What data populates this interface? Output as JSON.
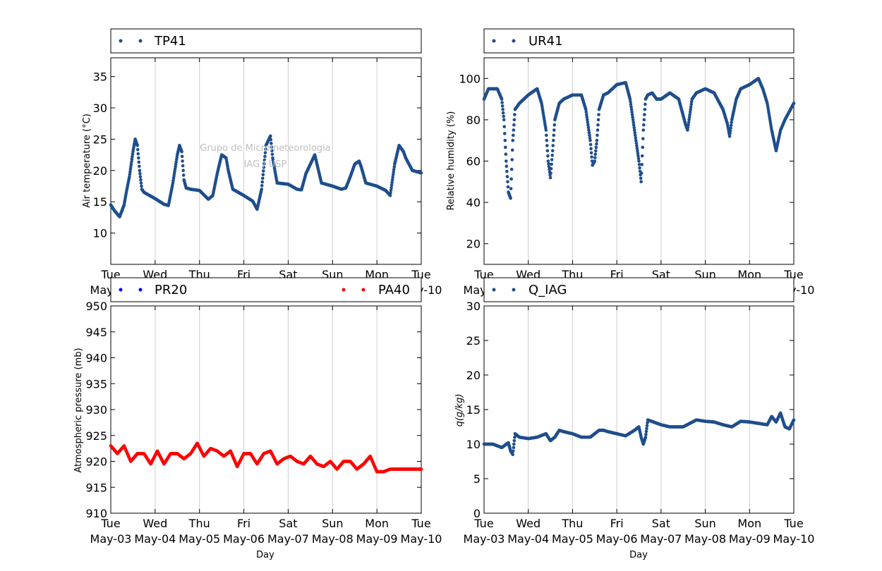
{
  "figure": {
    "watermark": [
      "Grupo de Micrometeorologia",
      "IAG / USP"
    ],
    "x_ticks": [
      {
        "day": "Tue",
        "date": "May-03"
      },
      {
        "day": "Wed",
        "date": "May-04"
      },
      {
        "day": "Thu",
        "date": "May-05"
      },
      {
        "day": "Fri",
        "date": "May-06"
      },
      {
        "day": "Sat",
        "date": "May-07"
      },
      {
        "day": "Sun",
        "date": "May-08"
      },
      {
        "day": "Mon",
        "date": "May-09"
      },
      {
        "day": "Tue",
        "date": "May-10"
      }
    ]
  },
  "chart_data": [
    {
      "type": "scatter",
      "xlabel": "Day",
      "ylabel": "Air temperature (°C)",
      "ylim": [
        5,
        38
      ],
      "yticks": [
        10,
        15,
        20,
        25,
        30,
        35
      ],
      "xlim": [
        0,
        7
      ],
      "grid": "vertical",
      "legend_position": "top, above plot",
      "color": "#1f4e8c",
      "series": [
        {
          "name": "TP41",
          "x": [
            0,
            0.08,
            0.2,
            0.3,
            0.35,
            0.42,
            0.5,
            0.55,
            0.6,
            0.65,
            0.7,
            0.75,
            1,
            1.2,
            1.3,
            1.4,
            1.5,
            1.55,
            1.6,
            1.65,
            1.7,
            1.8,
            2,
            2.2,
            2.3,
            2.4,
            2.5,
            2.6,
            2.65,
            2.75,
            3,
            3.2,
            3.3,
            3.4,
            3.5,
            3.6,
            3.65,
            3.75,
            4,
            4.2,
            4.3,
            4.4,
            4.5,
            4.6,
            4.65,
            4.75,
            5,
            5.2,
            5.3,
            5.4,
            5.5,
            5.6,
            5.65,
            5.75,
            6,
            6.2,
            6.3,
            6.4,
            6.5,
            6.6,
            6.65,
            6.8,
            7
          ],
          "y": [
            14.5,
            13.6,
            12.6,
            14.5,
            16.5,
            19,
            23,
            25,
            24,
            20,
            17,
            16.5,
            15.5,
            14.6,
            14.4,
            18,
            22.5,
            24,
            23,
            18.5,
            17.2,
            17,
            16.8,
            15.4,
            16,
            19.5,
            22.5,
            22,
            20,
            17,
            16,
            15.1,
            13.8,
            17,
            24,
            25.5,
            22,
            18,
            17.8,
            17,
            16.9,
            19.5,
            21,
            22.5,
            21,
            18,
            17.5,
            17,
            17.2,
            19,
            21,
            21.5,
            20.5,
            18,
            17.5,
            16.8,
            16,
            21,
            24,
            23,
            22,
            20,
            19.6
          ]
        }
      ]
    },
    {
      "type": "scatter",
      "xlabel": "Day",
      "ylabel": "Relative humidity (%)",
      "ylim": [
        10,
        110
      ],
      "yticks": [
        20,
        40,
        60,
        80,
        100
      ],
      "xlim": [
        0,
        7
      ],
      "grid": "vertical",
      "legend_position": "top, above plot",
      "color": "#1f4e8c",
      "series": [
        {
          "name": "UR41",
          "x": [
            0,
            0.1,
            0.3,
            0.4,
            0.45,
            0.5,
            0.55,
            0.6,
            0.65,
            0.7,
            0.8,
            1,
            1.2,
            1.3,
            1.4,
            1.45,
            1.5,
            1.55,
            1.6,
            1.7,
            1.8,
            2,
            2.2,
            2.3,
            2.4,
            2.45,
            2.5,
            2.55,
            2.6,
            2.7,
            2.8,
            3,
            3.2,
            3.3,
            3.4,
            3.5,
            3.55,
            3.6,
            3.65,
            3.7,
            3.8,
            3.9,
            4,
            4.2,
            4.4,
            4.5,
            4.55,
            4.6,
            4.7,
            4.8,
            5,
            5.2,
            5.4,
            5.5,
            5.55,
            5.6,
            5.7,
            5.8,
            6,
            6.2,
            6.3,
            6.4,
            6.5,
            6.6,
            6.7,
            6.8,
            7
          ],
          "y": [
            90,
            95,
            95,
            90,
            80,
            60,
            45,
            42,
            70,
            85,
            88,
            92,
            95,
            88,
            75,
            60,
            52,
            65,
            80,
            88,
            90,
            92,
            92,
            85,
            70,
            58,
            60,
            70,
            85,
            92,
            93,
            97,
            98,
            90,
            75,
            60,
            50,
            75,
            90,
            92,
            93,
            90,
            90,
            93,
            90,
            82,
            78,
            75,
            90,
            93,
            95,
            93,
            85,
            78,
            72,
            80,
            90,
            95,
            97,
            100,
            95,
            88,
            75,
            65,
            75,
            80,
            88
          ]
        }
      ]
    },
    {
      "type": "scatter",
      "xlabel": "Day",
      "ylabel": "Atmospheric pressure (mb)",
      "ylim": [
        910,
        950
      ],
      "yticks": [
        910,
        915,
        920,
        925,
        930,
        935,
        940,
        945,
        950
      ],
      "xlim": [
        0,
        7
      ],
      "grid": "vertical",
      "legend_position": "top, above plot",
      "series": [
        {
          "name": "PR20",
          "color": "#0000ff",
          "x": [],
          "y": []
        },
        {
          "name": "PA40",
          "color": "#ff0000",
          "x": [
            0,
            0.15,
            0.3,
            0.45,
            0.6,
            0.75,
            0.9,
            1.05,
            1.2,
            1.35,
            1.5,
            1.65,
            1.8,
            1.95,
            2.1,
            2.25,
            2.4,
            2.55,
            2.7,
            2.85,
            3,
            3.15,
            3.3,
            3.45,
            3.6,
            3.75,
            3.9,
            4.05,
            4.2,
            4.35,
            4.5,
            4.65,
            4.8,
            4.95,
            5.1,
            5.25,
            5.4,
            5.55,
            5.7,
            5.85,
            6,
            6.15,
            6.3,
            6.45,
            6.6,
            6.75,
            6.9,
            7
          ],
          "y": [
            923,
            921.5,
            923,
            920,
            921.5,
            921.5,
            919.5,
            922,
            919.5,
            921.5,
            921.5,
            920.5,
            921.5,
            923.5,
            921,
            922.5,
            922,
            921,
            922,
            919,
            921.5,
            921.5,
            919.5,
            921.5,
            922,
            919.5,
            920.5,
            921,
            920,
            919.5,
            921,
            919.5,
            919,
            920,
            918.5,
            920,
            920,
            918.5,
            919.5,
            921,
            918,
            918,
            918.5,
            918.5,
            918.5,
            918.5,
            918.5,
            918.5
          ]
        }
      ]
    },
    {
      "type": "scatter",
      "xlabel": "Day",
      "ylabel": "q(g/kg)",
      "ylim": [
        0,
        30
      ],
      "yticks": [
        0,
        5,
        10,
        15,
        20,
        25,
        30
      ],
      "xlim": [
        0,
        7
      ],
      "grid": "vertical",
      "legend_position": "top, above plot",
      "color": "#1f4e8c",
      "series": [
        {
          "name": "Q_IAG",
          "x": [
            0,
            0.2,
            0.4,
            0.55,
            0.6,
            0.65,
            0.7,
            0.8,
            1,
            1.2,
            1.4,
            1.5,
            1.6,
            1.7,
            1.8,
            2,
            2.2,
            2.4,
            2.6,
            2.7,
            2.8,
            3,
            3.2,
            3.4,
            3.5,
            3.55,
            3.6,
            3.65,
            3.7,
            4,
            4.2,
            4.5,
            4.8,
            5,
            5.2,
            5.4,
            5.6,
            5.8,
            6,
            6.2,
            6.4,
            6.5,
            6.6,
            6.7,
            6.8,
            6.9,
            7
          ],
          "y": [
            10,
            10,
            9.5,
            10.2,
            9,
            8.5,
            11.5,
            11,
            10.8,
            11,
            11.5,
            10.5,
            11,
            12,
            11.8,
            11.5,
            11,
            11,
            12,
            12,
            11.8,
            11.5,
            11.2,
            12,
            12.5,
            11,
            10,
            11,
            13.5,
            12.8,
            12.5,
            12.5,
            13.5,
            13.3,
            13.2,
            12.8,
            12.5,
            13.3,
            13.2,
            13,
            12.8,
            14,
            13.2,
            14.5,
            12.5,
            12.2,
            13.5
          ]
        }
      ]
    }
  ]
}
